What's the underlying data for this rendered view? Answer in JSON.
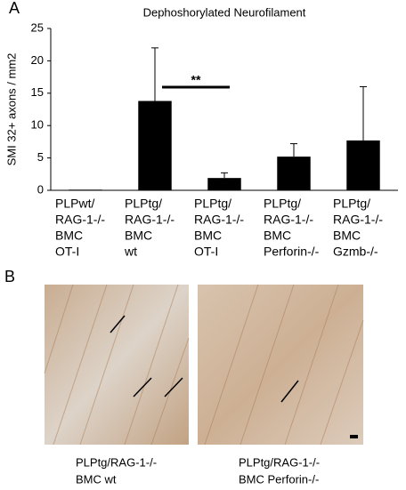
{
  "panel_labels": [
    "A",
    "B"
  ],
  "chart_data": {
    "type": "bar",
    "title": "Dephoshorylated Neurofilament",
    "y_label": "SMI 32+ axons / mm2",
    "categories": [
      [
        "PLPwt/",
        "RAG-1-/-",
        "BMC",
        "OT-I"
      ],
      [
        "PLPtg/",
        "RAG-1-/-",
        "BMC",
        "wt"
      ],
      [
        "PLPtg/",
        "RAG-1-/-",
        "BMC",
        "OT-I"
      ],
      [
        "PLPtg/",
        "RAG-1-/-",
        "BMC",
        "Perforin-/-"
      ],
      [
        "PLPtg/",
        "RAG-1-/-",
        "BMC",
        "Gzmb-/-"
      ]
    ],
    "values": [
      0.1,
      13.8,
      1.9,
      5.2,
      7.7
    ],
    "errors": [
      null,
      8.2,
      0.8,
      2.0,
      8.3
    ],
    "color": "#000000",
    "ylim": [
      0,
      25
    ],
    "yticks": [
      0,
      5,
      10,
      15,
      20,
      25
    ],
    "significance": "**"
  },
  "images": [
    {
      "caption": [
        "PLPtg/RAG-1-/-",
        "BMC wt"
      ]
    },
    {
      "caption": [
        "PLPtg/RAG-1-/-",
        "BMC Perforin-/-"
      ]
    }
  ]
}
